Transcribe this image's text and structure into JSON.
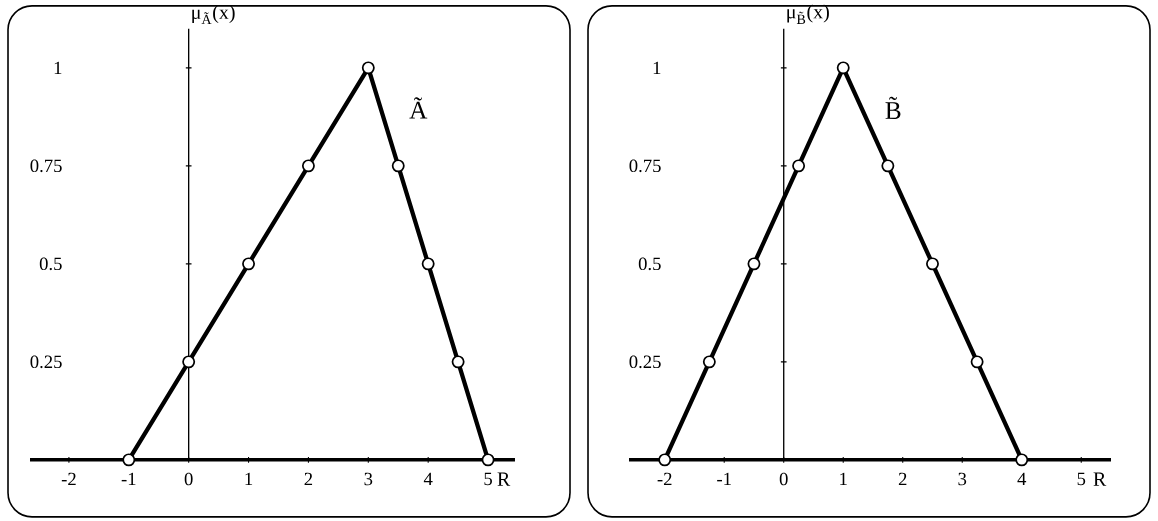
{
  "chart_data": [
    {
      "type": "line",
      "xlabel": "R",
      "ylabel": "μ$_{Ã}$(x)",
      "xlim": [
        -2.65,
        5.45
      ],
      "ylim": [
        0,
        1.1
      ],
      "xticks": [
        -2,
        -1,
        0,
        1,
        2,
        3,
        4,
        5
      ],
      "yticks": [
        0.25,
        0.5,
        0.75,
        1
      ],
      "marker": "circle",
      "annotations": [
        "Ã"
      ],
      "series": [
        {
          "color": "#000000",
          "x": [
            -1,
            0,
            1,
            2,
            3,
            3.5,
            4,
            4.5,
            5
          ],
          "values": [
            0,
            0.25,
            0.5,
            0.75,
            1,
            0.75,
            0.5,
            0.25,
            0
          ]
        }
      ]
    },
    {
      "type": "line",
      "xlabel": "R",
      "ylabel": "μ$_{B̃}$(x)",
      "xlim": [
        -2.6,
        5.5
      ],
      "ylim": [
        0,
        1.1
      ],
      "xticks": [
        -2,
        -1,
        0,
        1,
        2,
        3,
        4,
        5
      ],
      "yticks": [
        0.25,
        0.5,
        0.75,
        1
      ],
      "marker": "circle",
      "annotations": [
        "B̃"
      ],
      "series": [
        {
          "color": "#000000",
          "x": [
            -2,
            -1.25,
            -0.5,
            0.25,
            1,
            1.75,
            2.5,
            3.25,
            4
          ],
          "values": [
            0,
            0.25,
            0.5,
            0.75,
            1,
            0.75,
            0.5,
            0.25,
            0
          ]
        }
      ]
    }
  ]
}
